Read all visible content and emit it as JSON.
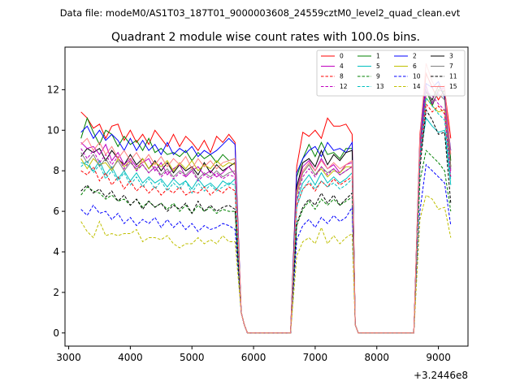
{
  "header": {
    "data_file": "Data file: modeM0/AS1T03_187T01_9000003608_24559cztM0_level2_quad_clean.evt"
  },
  "chart_data": {
    "type": "line",
    "title": "Quadrant 2 module wise count rates with 100.0s bins.",
    "xlabel": "",
    "ylabel": "",
    "x_offset_label": "+3.2446e8",
    "xlim": [
      2940,
      9480
    ],
    "ylim": [
      -0.65,
      14.1
    ],
    "x_ticks": [
      3000,
      4000,
      5000,
      6000,
      7000,
      8000,
      9000
    ],
    "x_tick_labels": [
      "3000",
      "4000",
      "5000",
      "6000",
      "7000",
      "8000",
      "9000"
    ],
    "y_ticks": [
      0,
      2,
      4,
      6,
      8,
      10,
      12
    ],
    "y_tick_labels": [
      "0",
      "2",
      "4",
      "6",
      "8",
      "10",
      "12"
    ],
    "grid": false,
    "legend_position": "top-right",
    "legend_columns": 4,
    "x": [
      3200,
      3300,
      3400,
      3500,
      3600,
      3700,
      3800,
      3900,
      4000,
      4100,
      4200,
      4300,
      4400,
      4500,
      4600,
      4700,
      4800,
      4900,
      5000,
      5100,
      5200,
      5300,
      5400,
      5500,
      5600,
      5700,
      5800,
      5850,
      5900,
      6000,
      6100,
      6200,
      6300,
      6400,
      6500,
      6600,
      6700,
      6800,
      6900,
      7000,
      7100,
      7200,
      7300,
      7400,
      7500,
      7600,
      7650,
      7700,
      7800,
      7900,
      8000,
      8100,
      8200,
      8300,
      8400,
      8500,
      8600,
      8700,
      8800,
      8900,
      9000,
      9100,
      9200
    ],
    "series": [
      {
        "name": "0",
        "color": "#ff0000",
        "dash": "solid",
        "values": [
          10.9,
          10.6,
          10.1,
          10.3,
          9.6,
          10.2,
          10.3,
          9.5,
          10.0,
          9.4,
          9.8,
          9.3,
          10.0,
          9.6,
          9.2,
          9.8,
          9.2,
          9.7,
          9.4,
          9.0,
          9.5,
          8.9,
          9.7,
          9.4,
          9.8,
          9.4,
          1.0,
          0.4,
          0.0,
          0.0,
          0.0,
          0.0,
          0.0,
          0.0,
          0.0,
          0.0,
          8.2,
          9.9,
          9.7,
          10.0,
          9.6,
          10.6,
          10.2,
          10.2,
          10.3,
          9.8,
          0.4,
          0.0,
          0.0,
          0.0,
          0.0,
          0.0,
          0.0,
          0.0,
          0.0,
          0.0,
          0.0,
          9.8,
          12.8,
          12.1,
          11.5,
          12.0,
          9.6
        ]
      },
      {
        "name": "1",
        "color": "#008000",
        "dash": "solid",
        "values": [
          9.6,
          10.6,
          9.9,
          9.3,
          10.0,
          9.8,
          9.2,
          9.7,
          9.3,
          9.5,
          9.0,
          9.6,
          8.9,
          9.1,
          8.8,
          8.9,
          8.7,
          9.0,
          8.5,
          8.9,
          8.6,
          8.8,
          8.4,
          8.8,
          8.5,
          8.6,
          1.0,
          0.4,
          0.0,
          0.0,
          0.0,
          0.0,
          0.0,
          0.0,
          0.0,
          0.0,
          7.7,
          8.6,
          9.3,
          8.7,
          9.4,
          8.8,
          8.9,
          8.6,
          9.1,
          9.1,
          0.4,
          0.0,
          0.0,
          0.0,
          0.0,
          0.0,
          0.0,
          0.0,
          0.0,
          0.0,
          0.0,
          9.3,
          12.0,
          11.2,
          12.0,
          11.9,
          8.5
        ]
      },
      {
        "name": "2",
        "color": "#0000ff",
        "dash": "solid",
        "values": [
          9.9,
          10.2,
          9.6,
          10.0,
          9.5,
          9.8,
          9.5,
          9.0,
          9.6,
          9.0,
          9.5,
          9.0,
          9.3,
          8.8,
          9.4,
          8.8,
          9.1,
          8.9,
          9.2,
          8.7,
          9.0,
          8.8,
          9.0,
          9.3,
          9.6,
          9.3,
          1.0,
          0.4,
          0.0,
          0.0,
          0.0,
          0.0,
          0.0,
          0.0,
          0.0,
          0.0,
          7.9,
          8.6,
          9.0,
          9.2,
          8.7,
          9.4,
          9.0,
          9.1,
          8.9,
          9.4,
          0.4,
          0.0,
          0.0,
          0.0,
          0.0,
          0.0,
          0.0,
          0.0,
          0.0,
          0.0,
          0.0,
          9.6,
          12.3,
          12.1,
          12.4,
          11.6,
          9.0
        ]
      },
      {
        "name": "3",
        "color": "#000000",
        "dash": "solid",
        "values": [
          8.7,
          9.1,
          8.9,
          9.1,
          8.5,
          9.0,
          8.6,
          8.3,
          8.8,
          8.3,
          8.6,
          8.1,
          8.5,
          8.0,
          8.4,
          7.9,
          8.3,
          8.0,
          8.2,
          7.8,
          8.4,
          7.9,
          8.3,
          8.0,
          8.2,
          8.4,
          1.0,
          0.4,
          0.0,
          0.0,
          0.0,
          0.0,
          0.0,
          0.0,
          0.0,
          0.0,
          7.2,
          8.4,
          8.6,
          8.2,
          9.0,
          8.3,
          8.8,
          8.5,
          8.9,
          9.0,
          0.4,
          0.0,
          0.0,
          0.0,
          0.0,
          0.0,
          0.0,
          0.0,
          0.0,
          0.0,
          0.0,
          9.2,
          11.9,
          11.5,
          12.2,
          11.7,
          8.2
        ]
      },
      {
        "name": "4",
        "color": "#bf00bf",
        "dash": "solid",
        "values": [
          9.4,
          9.1,
          9.2,
          8.8,
          9.3,
          8.5,
          8.9,
          8.3,
          8.6,
          8.2,
          8.4,
          8.6,
          8.0,
          8.4,
          7.8,
          8.1,
          8.3,
          7.7,
          8.0,
          8.2,
          7.8,
          8.0,
          7.7,
          7.9,
          8.2,
          7.8,
          1.0,
          0.4,
          0.0,
          0.0,
          0.0,
          0.0,
          0.0,
          0.0,
          0.0,
          0.0,
          7.0,
          8.2,
          8.5,
          8.0,
          8.6,
          8.1,
          8.3,
          7.9,
          8.3,
          8.4,
          0.4,
          0.0,
          0.0,
          0.0,
          0.0,
          0.0,
          0.0,
          0.0,
          0.0,
          0.0,
          0.0,
          9.1,
          12.2,
          11.3,
          11.9,
          12.1,
          8.0
        ]
      },
      {
        "name": "5",
        "color": "#00bfbf",
        "dash": "solid",
        "values": [
          8.4,
          8.3,
          8.0,
          8.5,
          7.8,
          8.2,
          7.6,
          8.0,
          7.5,
          7.9,
          7.4,
          7.7,
          7.4,
          7.6,
          7.2,
          7.6,
          7.3,
          7.5,
          7.1,
          7.6,
          7.2,
          7.4,
          7.1,
          7.5,
          7.3,
          7.6,
          1.0,
          0.4,
          0.0,
          0.0,
          0.0,
          0.0,
          0.0,
          0.0,
          0.0,
          0.0,
          6.5,
          7.4,
          7.8,
          7.3,
          7.9,
          7.4,
          7.7,
          7.4,
          7.6,
          7.9,
          0.4,
          0.0,
          0.0,
          0.0,
          0.0,
          0.0,
          0.0,
          0.0,
          0.0,
          0.0,
          0.0,
          8.6,
          10.6,
          10.2,
          9.9,
          10.0,
          7.3
        ]
      },
      {
        "name": "6",
        "color": "#bfbf00",
        "dash": "solid",
        "values": [
          8.6,
          8.1,
          8.6,
          8.3,
          8.4,
          8.0,
          8.6,
          8.2,
          8.5,
          8.0,
          8.6,
          8.1,
          8.4,
          8.2,
          8.5,
          8.0,
          8.4,
          8.1,
          8.5,
          8.0,
          8.3,
          8.1,
          8.5,
          8.2,
          8.4,
          8.3,
          1.0,
          0.4,
          0.0,
          0.0,
          0.0,
          0.0,
          0.0,
          0.0,
          0.0,
          0.0,
          6.8,
          7.9,
          8.3,
          7.8,
          8.1,
          7.7,
          8.0,
          7.9,
          8.2,
          8.2,
          0.4,
          0.0,
          0.0,
          0.0,
          0.0,
          0.0,
          0.0,
          0.0,
          0.0,
          0.0,
          0.0,
          8.8,
          11.6,
          11.2,
          10.9,
          11.0,
          8.2
        ]
      },
      {
        "name": "7",
        "color": "#808080",
        "dash": "solid",
        "values": [
          8.9,
          8.4,
          8.8,
          8.2,
          8.6,
          8.1,
          8.5,
          8.0,
          8.4,
          8.1,
          8.3,
          7.9,
          8.2,
          7.8,
          8.1,
          7.7,
          8.0,
          7.8,
          8.1,
          7.6,
          7.9,
          7.7,
          8.0,
          7.7,
          7.9,
          8.0,
          1.0,
          0.4,
          0.0,
          0.0,
          0.0,
          0.0,
          0.0,
          0.0,
          0.0,
          0.0,
          6.9,
          7.9,
          8.3,
          7.8,
          8.2,
          7.9,
          8.1,
          7.8,
          8.0,
          8.2,
          0.4,
          0.0,
          0.0,
          0.0,
          0.0,
          0.0,
          0.0,
          0.0,
          0.0,
          0.0,
          0.0,
          8.9,
          12.0,
          11.4,
          11.8,
          11.5,
          8.1
        ]
      },
      {
        "name": "8",
        "color": "#ff0000",
        "dash": "dashed",
        "values": [
          8.0,
          7.8,
          8.2,
          7.5,
          7.9,
          7.3,
          7.7,
          7.1,
          7.5,
          7.0,
          7.3,
          6.9,
          7.2,
          6.8,
          7.1,
          6.9,
          7.2,
          6.8,
          7.0,
          6.9,
          7.2,
          6.8,
          7.1,
          6.9,
          7.2,
          7.0,
          1.0,
          0.4,
          0.0,
          0.0,
          0.0,
          0.0,
          0.0,
          0.0,
          0.0,
          0.0,
          6.3,
          7.1,
          7.4,
          7.0,
          7.5,
          7.2,
          7.6,
          7.3,
          7.5,
          7.7,
          0.4,
          0.0,
          0.0,
          0.0,
          0.0,
          0.0,
          0.0,
          0.0,
          0.0,
          0.0,
          0.0,
          8.5,
          11.3,
          10.9,
          11.2,
          10.8,
          7.6
        ]
      },
      {
        "name": "9",
        "color": "#008000",
        "dash": "dashed",
        "values": [
          6.8,
          7.2,
          7.0,
          6.9,
          6.6,
          6.8,
          6.5,
          6.6,
          6.3,
          6.6,
          6.2,
          6.5,
          6.2,
          6.4,
          6.1,
          6.4,
          6.0,
          6.3,
          5.9,
          6.3,
          6.0,
          6.2,
          5.9,
          6.1,
          6.0,
          6.0,
          1.0,
          0.4,
          0.0,
          0.0,
          0.0,
          0.0,
          0.0,
          0.0,
          0.0,
          0.0,
          5.3,
          6.1,
          6.5,
          6.1,
          6.6,
          6.3,
          6.6,
          6.3,
          6.5,
          6.7,
          0.4,
          0.0,
          0.0,
          0.0,
          0.0,
          0.0,
          0.0,
          0.0,
          0.0,
          0.0,
          0.0,
          7.5,
          9.0,
          8.7,
          8.4,
          8.0,
          6.0
        ]
      },
      {
        "name": "10",
        "color": "#0000ff",
        "dash": "dashed",
        "values": [
          6.1,
          5.8,
          6.3,
          5.9,
          6.0,
          5.6,
          5.9,
          5.4,
          5.7,
          5.3,
          5.6,
          5.4,
          5.7,
          5.2,
          5.6,
          5.2,
          5.5,
          5.1,
          5.4,
          5.0,
          5.3,
          5.1,
          5.2,
          5.4,
          5.3,
          5.1,
          1.0,
          0.4,
          0.0,
          0.0,
          0.0,
          0.0,
          0.0,
          0.0,
          0.0,
          0.0,
          4.6,
          5.3,
          5.6,
          5.2,
          5.7,
          5.4,
          5.8,
          5.5,
          5.7,
          6.2,
          0.4,
          0.0,
          0.0,
          0.0,
          0.0,
          0.0,
          0.0,
          0.0,
          0.0,
          0.0,
          0.0,
          6.0,
          8.3,
          8.0,
          7.7,
          7.4,
          5.3
        ]
      },
      {
        "name": "11",
        "color": "#000000",
        "dash": "dashed",
        "values": [
          7.0,
          7.3,
          6.9,
          7.1,
          6.7,
          7.0,
          6.5,
          6.8,
          6.3,
          6.6,
          6.1,
          6.5,
          6.2,
          6.4,
          6.0,
          6.3,
          6.1,
          6.4,
          5.9,
          6.5,
          6.0,
          6.3,
          6.0,
          6.2,
          6.3,
          6.1,
          1.0,
          0.4,
          0.0,
          0.0,
          0.0,
          0.0,
          0.0,
          0.0,
          0.0,
          0.0,
          5.4,
          6.2,
          6.6,
          6.3,
          6.9,
          6.4,
          6.8,
          6.3,
          6.6,
          6.9,
          0.4,
          0.0,
          0.0,
          0.0,
          0.0,
          0.0,
          0.0,
          0.0,
          0.0,
          0.0,
          0.0,
          8.1,
          11.0,
          10.5,
          9.8,
          9.9,
          6.4
        ]
      },
      {
        "name": "12",
        "color": "#bf00bf",
        "dash": "dashed",
        "values": [
          9.1,
          8.6,
          9.0,
          8.4,
          8.8,
          8.3,
          8.7,
          8.1,
          8.5,
          8.0,
          8.3,
          7.9,
          8.2,
          7.7,
          8.0,
          7.6,
          7.9,
          7.7,
          8.0,
          7.5,
          7.8,
          7.6,
          7.9,
          7.6,
          7.8,
          7.7,
          1.0,
          0.4,
          0.0,
          0.0,
          0.0,
          0.0,
          0.0,
          0.0,
          0.0,
          0.0,
          6.6,
          7.7,
          8.1,
          7.7,
          8.2,
          7.8,
          8.1,
          7.8,
          8.0,
          8.2,
          0.4,
          0.0,
          0.0,
          0.0,
          0.0,
          0.0,
          0.0,
          0.0,
          0.0,
          0.0,
          0.0,
          8.7,
          11.9,
          11.7,
          11.3,
          11.0,
          7.7
        ]
      },
      {
        "name": "13",
        "color": "#00bfbf",
        "dash": "dashed",
        "values": [
          8.2,
          8.5,
          7.9,
          8.3,
          7.6,
          8.0,
          7.5,
          7.9,
          7.3,
          7.7,
          7.2,
          7.6,
          7.1,
          7.5,
          7.0,
          7.4,
          7.1,
          7.5,
          6.9,
          7.4,
          7.0,
          7.3,
          7.0,
          7.2,
          7.4,
          7.3,
          1.0,
          0.4,
          0.0,
          0.0,
          0.0,
          0.0,
          0.0,
          0.0,
          0.0,
          0.0,
          6.2,
          7.1,
          7.5,
          7.1,
          7.5,
          7.2,
          7.4,
          7.1,
          7.3,
          7.6,
          0.4,
          0.0,
          0.0,
          0.0,
          0.0,
          0.0,
          0.0,
          0.0,
          0.0,
          0.0,
          0.0,
          8.6,
          11.6,
          11.2,
          10.8,
          10.5,
          7.5
        ]
      },
      {
        "name": "14",
        "color": "#bfbf00",
        "dash": "dashed",
        "values": [
          5.5,
          5.0,
          4.7,
          5.5,
          4.8,
          4.9,
          4.8,
          4.9,
          4.9,
          5.1,
          4.5,
          4.7,
          4.7,
          4.6,
          4.8,
          4.4,
          4.2,
          4.4,
          4.4,
          4.7,
          4.4,
          4.6,
          4.4,
          4.8,
          4.5,
          4.5,
          1.0,
          0.4,
          0.0,
          0.0,
          0.0,
          0.0,
          0.0,
          0.0,
          0.0,
          0.0,
          3.8,
          4.5,
          4.7,
          4.4,
          5.2,
          4.4,
          4.8,
          4.4,
          4.7,
          4.9,
          0.4,
          0.0,
          0.0,
          0.0,
          0.0,
          0.0,
          0.0,
          0.0,
          0.0,
          0.0,
          0.0,
          5.6,
          6.8,
          6.6,
          6.1,
          6.2,
          4.7
        ]
      },
      {
        "name": "15",
        "color": "#ff7f7f",
        "dash": "solid",
        "values": [
          9.3,
          9.6,
          9.0,
          9.4,
          8.8,
          9.2,
          8.6,
          9.0,
          8.5,
          8.9,
          8.4,
          8.8,
          8.3,
          8.7,
          8.2,
          8.6,
          8.3,
          8.7,
          8.1,
          8.6,
          8.2,
          8.5,
          8.1,
          8.4,
          8.5,
          8.6,
          1.0,
          0.4,
          0.0,
          0.0,
          0.0,
          0.0,
          0.0,
          0.0,
          0.0,
          0.0,
          7.0,
          8.0,
          8.4,
          8.0,
          8.5,
          8.1,
          8.4,
          8.1,
          8.3,
          8.5,
          0.4,
          0.0,
          0.0,
          0.0,
          0.0,
          0.0,
          0.0,
          0.0,
          0.0,
          0.0,
          0.0,
          9.6,
          13.3,
          12.4,
          11.9,
          12.2,
          8.8
        ]
      }
    ]
  }
}
